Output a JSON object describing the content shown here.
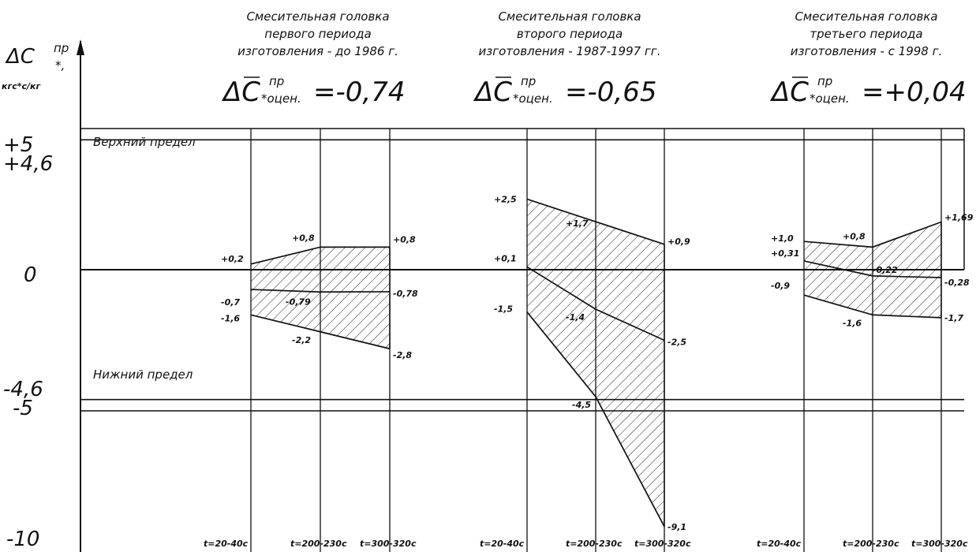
{
  "chart_data": {
    "type": "line",
    "y_axis": {
      "symbol": "ΔC",
      "superscript": "пр",
      "subscript": "*,",
      "units": "кгс*с/кг",
      "ticks": [
        "+5",
        "+4,6",
        "0",
        "-4,6",
        "-5",
        "-10"
      ],
      "tick_values": [
        5,
        4.6,
        0,
        -4.6,
        -5,
        -10
      ],
      "ylim": [
        -10,
        5
      ]
    },
    "limits": [
      {
        "name": "Верхний предел",
        "value": 4.6
      },
      {
        "name": "Нижний предел",
        "value": -4.6
      }
    ],
    "x_categories": [
      "t=20-40с",
      "t=200-230с",
      "t=300-320с"
    ],
    "panels": [
      {
        "title_lines": [
          "Смесительная головка",
          "первого периода",
          "изготовления - до 1986 г."
        ],
        "estimate_symbol": "ΔC",
        "estimate_sup": "пр",
        "estimate_sub": "*оцен.",
        "estimate_value": "=-0,74",
        "series": [
          {
            "values": [
              0.2,
              0.8,
              0.8
            ],
            "labels": [
              "+0,2",
              "+0,8",
              "+0,8"
            ]
          },
          {
            "values": [
              -0.7,
              -0.79,
              -0.78
            ],
            "labels": [
              "-0,7",
              "-0,79",
              "-0,78"
            ]
          },
          {
            "values": [
              -1.6,
              -2.2,
              -2.8
            ],
            "labels": [
              "-1,6",
              "-2,2",
              "-2,8"
            ]
          }
        ]
      },
      {
        "title_lines": [
          "Смесительная головка",
          "второго периода",
          "изготовления - 1987-1997 гг."
        ],
        "estimate_symbol": "ΔC",
        "estimate_sup": "пр",
        "estimate_sub": "*оцен.",
        "estimate_value": "=-0,65",
        "series": [
          {
            "values": [
              2.5,
              1.7,
              0.9
            ],
            "labels": [
              "+2,5",
              "+1,7",
              "+0,9"
            ]
          },
          {
            "values": [
              0.1,
              -1.4,
              -2.5
            ],
            "labels": [
              "+0,1",
              "-1,4",
              "-2,5"
            ]
          },
          {
            "values": [
              -1.5,
              -4.5,
              -9.1
            ],
            "labels": [
              "-1,5",
              "-4,5",
              "-9,1"
            ]
          }
        ]
      },
      {
        "title_lines": [
          "Смесительная головка",
          "третьего периода",
          "изготовления - с 1998 г."
        ],
        "estimate_symbol": "ΔC",
        "estimate_sup": "пр",
        "estimate_sub": "*оцен.",
        "estimate_value": "=+0,04",
        "series": [
          {
            "values": [
              1.0,
              0.8,
              1.69
            ],
            "labels": [
              "+1,0",
              "+0,8",
              "+1,69"
            ]
          },
          {
            "values": [
              0.31,
              -0.22,
              -0.28
            ],
            "labels": [
              "+0,31",
              "-0,22",
              "-0,28"
            ]
          },
          {
            "values": [
              -0.9,
              -1.6,
              -1.7
            ],
            "labels": [
              "-0,9",
              "-1,6",
              "-1,7"
            ]
          }
        ]
      }
    ]
  }
}
